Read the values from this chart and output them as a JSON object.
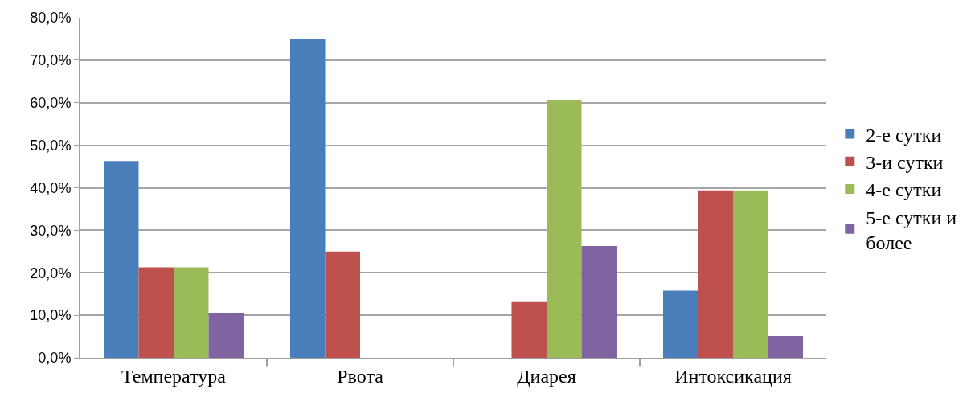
{
  "chart_data": {
    "type": "bar",
    "categories": [
      "Температура",
      "Рвота",
      "Диарея",
      "Интоксикация"
    ],
    "series": [
      {
        "name": "2-е сутки",
        "color": "#4a7ebb",
        "values": [
          46.3,
          75.0,
          0,
          15.8
        ]
      },
      {
        "name": "3-и сутки",
        "color": "#be504d",
        "values": [
          21.3,
          25.0,
          13.1,
          39.4
        ]
      },
      {
        "name": "4-е сутки",
        "color": "#9bbb59",
        "values": [
          21.3,
          0,
          60.5,
          39.4
        ]
      },
      {
        "name": "5-е сутки и более",
        "color": "#8064a2",
        "values": [
          10.6,
          0,
          26.3,
          5.1
        ]
      }
    ],
    "ylim": [
      0,
      80
    ],
    "yticks": [
      {
        "value": 0,
        "label": "0,0%"
      },
      {
        "value": 10,
        "label": "10,0%"
      },
      {
        "value": 20,
        "label": "20,0%"
      },
      {
        "value": 30,
        "label": "30,0%"
      },
      {
        "value": 40,
        "label": "40,0%"
      },
      {
        "value": 50,
        "label": "50,0%"
      },
      {
        "value": 60,
        "label": "60,0%"
      },
      {
        "value": 70,
        "label": "70,0%"
      },
      {
        "value": 80,
        "label": "80,0%"
      }
    ],
    "grid": "y",
    "legend": "right"
  }
}
